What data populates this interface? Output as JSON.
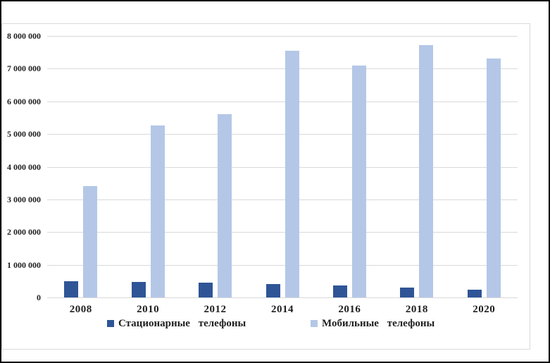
{
  "colors": {
    "background": "#FFFFFF",
    "page_border": "#000000",
    "frame_border": "#D9D9D9",
    "gridline": "#D9D9D9",
    "text": "#1F1F1F",
    "series_stationary": "#2F5597",
    "series_mobile": "#B4C7E7"
  },
  "chart_data": {
    "type": "bar",
    "title": "",
    "xlabel": "",
    "ylabel": "",
    "categories": [
      "2008",
      "2010",
      "2012",
      "2014",
      "2016",
      "2018",
      "2020"
    ],
    "series": [
      {
        "name": "Стационарные телефоны",
        "key": "stationary",
        "color": "#2F5597",
        "values": [
          490000,
          480000,
          460000,
          420000,
          375000,
          310000,
          245000
        ]
      },
      {
        "name": "Мобильные телефоны",
        "key": "mobile",
        "color": "#B4C7E7",
        "values": [
          3400000,
          5260000,
          5600000,
          7550000,
          7100000,
          7720000,
          7300000
        ]
      }
    ],
    "ylim": [
      0,
      8000000
    ],
    "y_tick_interval": 1000000,
    "y_tick_labels": [
      "0",
      "1 000 000",
      "2 000 000",
      "3 000 000",
      "4 000 000",
      "5 000 000",
      "6 000 000",
      "7 000 000",
      "8 000 000"
    ],
    "grid": true,
    "legend_position": "bottom"
  }
}
